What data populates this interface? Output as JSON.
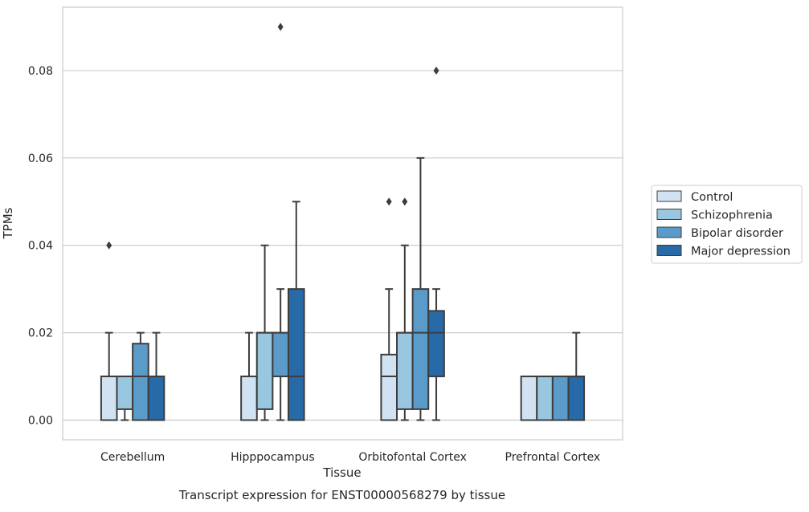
{
  "chart_data": {
    "type": "boxplot",
    "title": "Transcript expression for ENST00000568279 by tissue",
    "xlabel": "Tissue",
    "ylabel": "TPMs",
    "ylim": [
      -0.0045,
      0.0945
    ],
    "yticks": [
      "0.00",
      "0.02",
      "0.04",
      "0.06",
      "0.08"
    ],
    "ytick_values": [
      0,
      0.02,
      0.04,
      0.06,
      0.08
    ],
    "grid": "horizontal",
    "legend_position": "right",
    "categories": [
      "Cerebellum",
      "Hipppocampus",
      "Orbitofontal Cortex",
      "Prefrontal Cortex"
    ],
    "series": [
      {
        "name": "Control",
        "color": "#d1e2f2",
        "boxes": [
          {
            "q1": 0,
            "median": 0.01,
            "q3": 0.01,
            "whislo": 0,
            "whishi": 0.02,
            "fliers": [
              0.04
            ]
          },
          {
            "q1": 0,
            "median": 0.01,
            "q3": 0.01,
            "whislo": 0,
            "whishi": 0.02,
            "fliers": []
          },
          {
            "q1": 0,
            "median": 0.01,
            "q3": 0.015,
            "whislo": 0,
            "whishi": 0.03,
            "fliers": [
              0.05
            ]
          },
          {
            "q1": 0,
            "median": 0.01,
            "q3": 0.01,
            "whislo": 0,
            "whishi": 0.01,
            "fliers": []
          }
        ]
      },
      {
        "name": "Schizophrenia",
        "color": "#9ac7e0",
        "boxes": [
          {
            "q1": 0.0025,
            "median": 0.01,
            "q3": 0.01,
            "whislo": 0,
            "whishi": 0.01,
            "fliers": []
          },
          {
            "q1": 0.0025,
            "median": 0.02,
            "q3": 0.02,
            "whislo": 0,
            "whishi": 0.04,
            "fliers": []
          },
          {
            "q1": 0.0025,
            "median": 0.02,
            "q3": 0.02,
            "whislo": 0,
            "whishi": 0.04,
            "fliers": [
              0.05
            ]
          },
          {
            "q1": 0,
            "median": 0.01,
            "q3": 0.01,
            "whislo": 0,
            "whishi": 0.01,
            "fliers": []
          }
        ]
      },
      {
        "name": "Bipolar disorder",
        "color": "#5a9bc9",
        "boxes": [
          {
            "q1": 0,
            "median": 0.01,
            "q3": 0.0175,
            "whislo": 0,
            "whishi": 0.02,
            "fliers": []
          },
          {
            "q1": 0.01,
            "median": 0.02,
            "q3": 0.02,
            "whislo": 0,
            "whishi": 0.03,
            "fliers": [
              0.09
            ]
          },
          {
            "q1": 0.0025,
            "median": 0.02,
            "q3": 0.03,
            "whislo": 0,
            "whishi": 0.06,
            "fliers": []
          },
          {
            "q1": 0,
            "median": 0.01,
            "q3": 0.01,
            "whislo": 0,
            "whishi": 0.01,
            "fliers": []
          }
        ]
      },
      {
        "name": "Major depression",
        "color": "#2869a8",
        "boxes": [
          {
            "q1": 0,
            "median": 0.01,
            "q3": 0.01,
            "whislo": 0,
            "whishi": 0.02,
            "fliers": []
          },
          {
            "q1": 0,
            "median": 0.01,
            "q3": 0.03,
            "whislo": 0,
            "whishi": 0.05,
            "fliers": []
          },
          {
            "q1": 0.01,
            "median": 0.02,
            "q3": 0.025,
            "whislo": 0,
            "whishi": 0.03,
            "fliers": [
              0.08
            ]
          },
          {
            "q1": 0,
            "median": 0.01,
            "q3": 0.01,
            "whislo": 0,
            "whishi": 0.02,
            "fliers": []
          }
        ]
      }
    ]
  }
}
